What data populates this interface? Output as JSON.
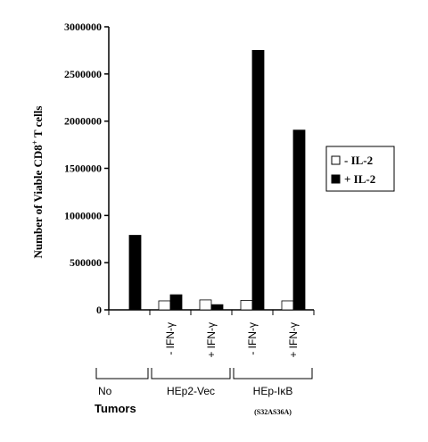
{
  "chart_data": {
    "type": "bar",
    "ylabel": "Number of Viable CD8",
    "ylabel_sup": "+",
    "ylabel_tail": " T cells",
    "ylim": [
      0,
      3000000
    ],
    "yticks": [
      "0",
      "500000",
      "1000000",
      "1500000",
      "2000000",
      "2500000",
      "3000000"
    ],
    "categories": [
      "",
      "- IFN-γ",
      "+ IFN-γ",
      "- IFN-γ",
      "+ IFN-γ"
    ],
    "groups": [
      {
        "label": "No",
        "members": [
          0
        ]
      },
      {
        "label": "HEp2-Vec",
        "members": [
          1,
          2
        ]
      },
      {
        "label": "HEp-IκB",
        "sublabel": "(S32AS36A)",
        "members": [
          3,
          4
        ]
      }
    ],
    "xtitle": "Tumors",
    "series": [
      {
        "name": "- IL-2",
        "color": "#ffffff",
        "values": [
          null,
          95000,
          105000,
          100000,
          95000
        ]
      },
      {
        "name": "+ IL-2",
        "color": "#000000",
        "values": [
          790000,
          160000,
          55000,
          2750000,
          1905000
        ]
      }
    ],
    "legend": "right"
  }
}
